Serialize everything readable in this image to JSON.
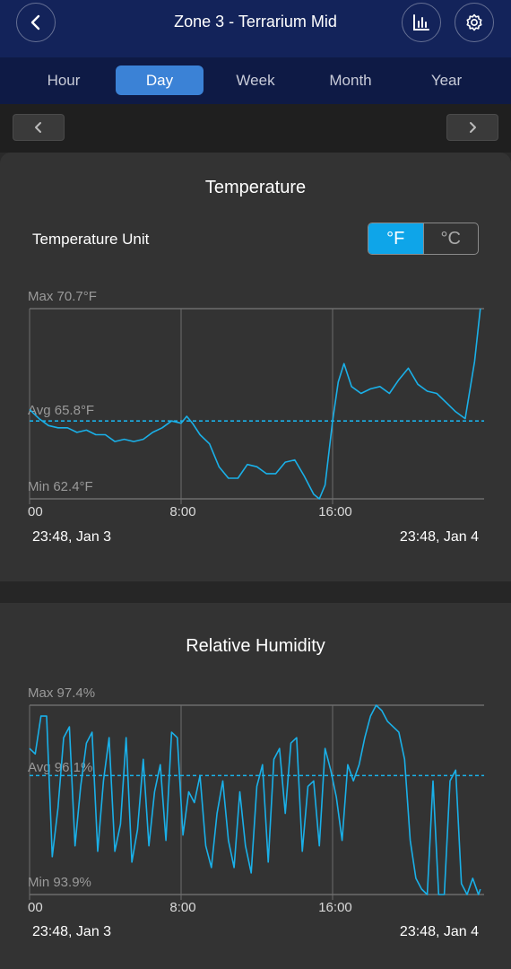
{
  "header": {
    "title": "Zone 3 - Terrarium Mid",
    "back_icon": "chevron-left-icon",
    "chart_icon": "bar-chart-icon",
    "settings_icon": "gear-icon"
  },
  "tabs": [
    {
      "label": "Hour",
      "active": false
    },
    {
      "label": "Day",
      "active": true
    },
    {
      "label": "Week",
      "active": false
    },
    {
      "label": "Month",
      "active": false
    },
    {
      "label": "Year",
      "active": false
    }
  ],
  "colors": {
    "header_bg": "#13235a",
    "tab_active": "#3b82d6",
    "line": "#1ab0e8",
    "unit_active": "#0ea5e9"
  },
  "temperature": {
    "title": "Temperature",
    "unit_label": "Temperature Unit",
    "unit_options": [
      "°F",
      "°C"
    ],
    "unit_selected": "°F",
    "max_label": "Max 70.7°F",
    "avg_label": "Avg 65.8°F",
    "min_label": "Min 62.4°F",
    "x_ticks": [
      "00",
      "8:00",
      "16:00"
    ],
    "range_start": "23:48,  Jan 3",
    "range_end": "23:48,  Jan 4"
  },
  "humidity": {
    "title": "Relative Humidity",
    "max_label": "Max 97.4%",
    "avg_label": "Avg 96.1%",
    "min_label": "Min 93.9%",
    "x_ticks": [
      "00",
      "8:00",
      "16:00"
    ],
    "range_start": "23:48,  Jan 3",
    "range_end": "23:48,  Jan 4"
  },
  "chart_data": [
    {
      "type": "line",
      "title": "Temperature",
      "ylim": [
        62.4,
        70.7
      ],
      "avg": 65.8,
      "x_ticks": [
        "00",
        "8:00",
        "16:00"
      ],
      "series": [
        {
          "x": [
            0,
            0.5,
            1,
            1.5,
            2,
            2.5,
            3,
            3.5,
            4,
            4.5,
            5,
            5.5,
            6,
            6.5,
            7,
            7.5,
            8,
            8.3,
            8.6,
            9,
            9.5,
            10,
            10.5,
            11,
            11.5,
            12,
            12.5,
            13,
            13.5,
            14,
            14.5,
            15,
            15.3,
            15.6,
            16,
            16.3,
            16.6,
            17,
            17.5,
            18,
            18.5,
            19,
            19.5,
            20,
            20.5,
            21,
            21.5,
            22,
            22.5,
            23,
            23.5,
            23.8
          ],
          "values": [
            66.3,
            65.9,
            65.6,
            65.5,
            65.5,
            65.3,
            65.4,
            65.2,
            65.2,
            64.9,
            65.0,
            64.9,
            65.0,
            65.3,
            65.5,
            65.8,
            65.7,
            66.0,
            65.7,
            65.2,
            64.8,
            63.8,
            63.3,
            63.3,
            63.9,
            63.8,
            63.5,
            63.5,
            64.0,
            64.1,
            63.4,
            62.6,
            62.4,
            63.0,
            65.8,
            67.5,
            68.3,
            67.3,
            67.0,
            67.2,
            67.3,
            67.0,
            67.6,
            68.1,
            67.4,
            67.1,
            67.0,
            66.6,
            66.2,
            65.9,
            68.4,
            70.7
          ]
        }
      ]
    },
    {
      "type": "line",
      "title": "Relative Humidity",
      "ylim": [
        93.9,
        97.4
      ],
      "avg": 96.1,
      "x_ticks": [
        "00",
        "8:00",
        "16:00"
      ],
      "series": [
        {
          "x": [
            0,
            0.3,
            0.6,
            0.9,
            1.2,
            1.5,
            1.8,
            2.1,
            2.4,
            2.7,
            3,
            3.3,
            3.6,
            3.9,
            4.2,
            4.5,
            4.8,
            5.1,
            5.4,
            5.7,
            6,
            6.3,
            6.6,
            6.9,
            7.2,
            7.5,
            7.8,
            8.1,
            8.4,
            8.7,
            9,
            9.3,
            9.6,
            9.9,
            10.2,
            10.5,
            10.8,
            11.1,
            11.4,
            11.7,
            12,
            12.3,
            12.6,
            12.9,
            13.2,
            13.5,
            13.8,
            14.1,
            14.4,
            14.7,
            15,
            15.3,
            15.6,
            15.9,
            16.2,
            16.5,
            16.8,
            17.1,
            17.4,
            17.7,
            18,
            18.3,
            18.6,
            18.9,
            19.2,
            19.5,
            19.8,
            20.1,
            20.4,
            20.7,
            21,
            21.3,
            21.6,
            21.9,
            22.2,
            22.5,
            22.8,
            23.1,
            23.4,
            23.7,
            23.8
          ],
          "values": [
            96.6,
            96.5,
            97.2,
            97.2,
            94.6,
            95.5,
            96.8,
            97.0,
            94.8,
            95.9,
            96.7,
            96.9,
            94.7,
            96.0,
            96.8,
            94.7,
            95.2,
            96.8,
            94.5,
            95.1,
            96.4,
            94.8,
            95.8,
            96.3,
            94.9,
            96.9,
            96.8,
            95.0,
            95.8,
            95.6,
            96.1,
            94.8,
            94.4,
            95.4,
            96.0,
            94.9,
            94.4,
            95.8,
            94.8,
            94.3,
            95.9,
            96.3,
            94.5,
            96.4,
            96.6,
            95.4,
            96.7,
            96.8,
            94.7,
            95.9,
            96.0,
            94.8,
            96.6,
            96.2,
            95.7,
            94.9,
            96.3,
            96.0,
            96.3,
            96.8,
            97.2,
            97.4,
            97.3,
            97.1,
            97.0,
            96.9,
            96.4,
            94.9,
            94.2,
            94.0,
            93.9,
            96.0,
            93.9,
            93.9,
            96.0,
            96.2,
            94.1,
            93.9,
            94.2,
            93.9,
            94.0
          ]
        }
      ]
    }
  ]
}
